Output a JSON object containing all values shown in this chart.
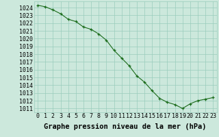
{
  "x": [
    0,
    1,
    2,
    3,
    4,
    5,
    6,
    7,
    8,
    9,
    10,
    11,
    12,
    13,
    14,
    15,
    16,
    17,
    18,
    19,
    20,
    21,
    22,
    23
  ],
  "y": [
    1024.3,
    1024.1,
    1023.7,
    1023.2,
    1022.5,
    1022.2,
    1021.5,
    1021.2,
    1020.6,
    1019.8,
    1018.5,
    1017.5,
    1016.5,
    1015.2,
    1014.4,
    1013.3,
    1012.3,
    1011.8,
    1011.5,
    1011.0,
    1011.6,
    1012.0,
    1012.2,
    1012.4
  ],
  "line_color": "#1a6b1a",
  "marker": "+",
  "bg_color": "#cce8dc",
  "grid_color": "#99ccbb",
  "ylabel_ticks": [
    1011,
    1012,
    1013,
    1014,
    1015,
    1016,
    1017,
    1018,
    1019,
    1020,
    1021,
    1022,
    1023,
    1024
  ],
  "ylim": [
    1010.5,
    1024.8
  ],
  "xlim": [
    -0.5,
    23.5
  ],
  "xlabel": "Graphe pression niveau de la mer (hPa)",
  "xlabel_fontsize": 7.5,
  "tick_fontsize": 6,
  "title": ""
}
